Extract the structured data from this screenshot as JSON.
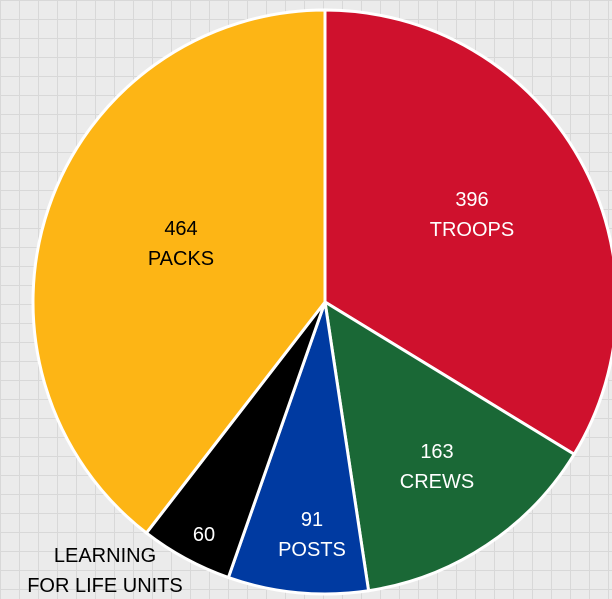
{
  "chart_data": {
    "type": "pie",
    "title": "",
    "slices": [
      {
        "value": 396,
        "label": "TROOPS",
        "color": "#cf112d",
        "text_color": "#ffffff"
      },
      {
        "value": 163,
        "label": "CREWS",
        "color": "#1a6836",
        "text_color": "#ffffff"
      },
      {
        "value": 91,
        "label": "POSTS",
        "color": "#003aa1",
        "text_color": "#ffffff"
      },
      {
        "value": 60,
        "label": "LEARNING FOR LIFE UNITS",
        "label_lines": [
          "LEARNING",
          "FOR LIFE UNITS"
        ],
        "label_outside": true,
        "color": "#000000",
        "text_color": "#ffffff",
        "outside_text_color": "#000000"
      },
      {
        "value": 464,
        "label": "PACKS",
        "color": "#fdb515",
        "text_color": "#000000"
      }
    ]
  }
}
